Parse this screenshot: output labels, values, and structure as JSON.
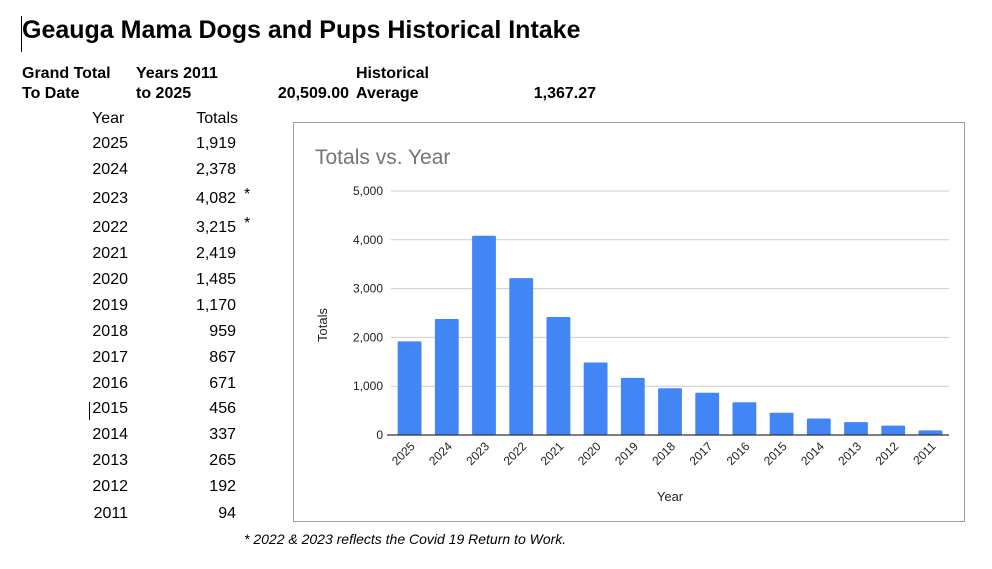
{
  "document": {
    "title": "Geauga Mama Dogs and Pups Historical Intake",
    "summary": {
      "grand_total_label_line1": "Grand Total",
      "grand_total_label_line2": "To Date",
      "years_label_line1": "Years 2011",
      "years_label_line2": "to 2025",
      "grand_total_value": "20,509.00",
      "average_label_line1": "Historical",
      "average_label_line2": "Average",
      "average_value": "1,367.27"
    },
    "table": {
      "headers": [
        "Year",
        "Totals"
      ],
      "rows": [
        {
          "year": "2025",
          "total": "1,919",
          "mark": ""
        },
        {
          "year": "2024",
          "total": "2,378",
          "mark": ""
        },
        {
          "year": "2023",
          "total": "4,082",
          "mark": "*"
        },
        {
          "year": "2022",
          "total": "3,215",
          "mark": "*"
        },
        {
          "year": "2021",
          "total": "2,419",
          "mark": ""
        },
        {
          "year": "2020",
          "total": "1,485",
          "mark": ""
        },
        {
          "year": "2019",
          "total": "1,170",
          "mark": ""
        },
        {
          "year": "2018",
          "total": "959",
          "mark": ""
        },
        {
          "year": "2017",
          "total": "867",
          "mark": ""
        },
        {
          "year": "2016",
          "total": "671",
          "mark": ""
        },
        {
          "year": "2015",
          "total": "456",
          "mark": ""
        },
        {
          "year": "2014",
          "total": "337",
          "mark": ""
        },
        {
          "year": "2013",
          "total": "265",
          "mark": ""
        },
        {
          "year": "2012",
          "total": "192",
          "mark": ""
        },
        {
          "year": "2011",
          "total": "94",
          "mark": ""
        }
      ]
    },
    "footnote": "* 2022 & 2023 reflects the Covid 19 Return to Work."
  },
  "chart_data": {
    "type": "bar",
    "title": "Totals vs. Year",
    "xlabel": "Year",
    "ylabel": "Totals",
    "categories": [
      "2025",
      "2024",
      "2023",
      "2022",
      "2021",
      "2020",
      "2019",
      "2018",
      "2017",
      "2016",
      "2015",
      "2014",
      "2013",
      "2012",
      "2011"
    ],
    "values": [
      1919,
      2378,
      4082,
      3215,
      2419,
      1485,
      1170,
      959,
      867,
      671,
      456,
      337,
      265,
      192,
      94
    ],
    "ylim": [
      0,
      5000
    ],
    "yticks": [
      0,
      1000,
      2000,
      3000,
      4000,
      5000
    ],
    "ytick_labels": [
      "0",
      "1,000",
      "2,000",
      "3,000",
      "4,000",
      "5,000"
    ],
    "grid": true,
    "legend": "none",
    "colors": {
      "bar": "#4285f4",
      "title": "#757575",
      "grid": "#cccccc",
      "axis": "#333333"
    }
  }
}
